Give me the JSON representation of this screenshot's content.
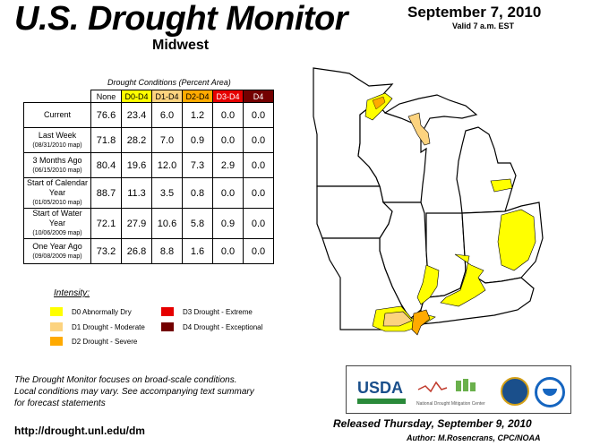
{
  "header": {
    "title": "U.S. Drought Monitor",
    "region": "Midwest",
    "date": "September 7, 2010",
    "valid": "Valid 7 a.m. EST"
  },
  "table": {
    "title": "Drought Conditions (Percent Area)",
    "columns": [
      "None",
      "D0-D4",
      "D1-D4",
      "D2-D4",
      "D3-D4",
      "D4"
    ],
    "rows": [
      {
        "label": "Current",
        "sub": "",
        "values": [
          "76.6",
          "23.4",
          "6.0",
          "1.2",
          "0.0",
          "0.0"
        ]
      },
      {
        "label": "Last Week",
        "sub": "(08/31/2010 map)",
        "values": [
          "71.8",
          "28.2",
          "7.0",
          "0.9",
          "0.0",
          "0.0"
        ]
      },
      {
        "label": "3 Months Ago",
        "sub": "(06/15/2010 map)",
        "values": [
          "80.4",
          "19.6",
          "12.0",
          "7.3",
          "2.9",
          "0.0"
        ]
      },
      {
        "label": "Start of Calendar Year",
        "sub": "(01/05/2010 map)",
        "values": [
          "88.7",
          "11.3",
          "3.5",
          "0.8",
          "0.0",
          "0.0"
        ]
      },
      {
        "label": "Start of Water Year",
        "sub": "(10/06/2009 map)",
        "values": [
          "72.1",
          "27.9",
          "10.6",
          "5.8",
          "0.9",
          "0.0"
        ]
      },
      {
        "label": "One Year Ago",
        "sub": "(09/08/2009 map)",
        "values": [
          "73.2",
          "26.8",
          "8.8",
          "1.6",
          "0.0",
          "0.0"
        ]
      }
    ]
  },
  "legend": {
    "title": "Intensity:",
    "items": [
      {
        "label": "D0 Abnormally Dry",
        "color": "#ffff00"
      },
      {
        "label": "D1 Drought - Moderate",
        "color": "#fcd37f"
      },
      {
        "label": "D2 Drought - Severe",
        "color": "#ffaa00"
      },
      {
        "label": "D3 Drought - Extreme",
        "color": "#e60000"
      },
      {
        "label": "D4 Drought - Exceptional",
        "color": "#730000"
      }
    ]
  },
  "footer": {
    "note_line1": "The Drought Monitor focuses on broad-scale conditions.",
    "note_line2": "Local conditions may vary. See accompanying text summary",
    "note_line3": "for forecast statements",
    "url": "http://drought.unl.edu/dm",
    "released": "Released Thursday, September 9, 2010",
    "author": "Author: M.Rosencrans, CPC/NOAA"
  },
  "logos": {
    "usda": "USDA",
    "ndmc": "National Drought Mitigation Center"
  }
}
